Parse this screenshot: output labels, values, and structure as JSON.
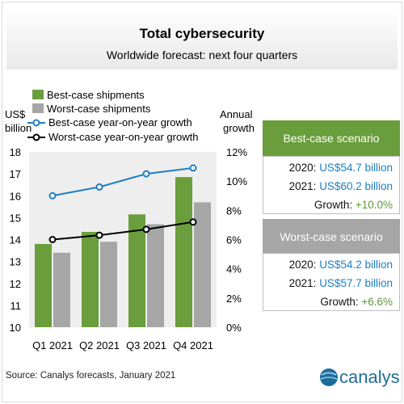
{
  "header": {
    "title": "Total cybersecurity",
    "subtitle": "Worldwide forecast: next four quarters"
  },
  "chart_data": {
    "type": "bar",
    "categories": [
      "Q1 2021",
      "Q2 2021",
      "Q3 2021",
      "Q4 2021"
    ],
    "ylim": [
      10,
      18
    ],
    "y2lim": [
      0,
      12
    ],
    "yticks": [
      "10",
      "11",
      "12",
      "13",
      "14",
      "15",
      "16",
      "17",
      "18"
    ],
    "y2ticks": [
      "0%",
      "2%",
      "4%",
      "6%",
      "8%",
      "10%",
      "12%"
    ],
    "ylabel": [
      "US$",
      "billion"
    ],
    "y2label": [
      "Annual",
      "growth"
    ],
    "grid": false,
    "legend_position": "top-left",
    "bar_series": [
      {
        "name": "Best-case shipments",
        "values": [
          13.8,
          14.35,
          15.15,
          16.85
        ]
      },
      {
        "name": "Worst-case shipments",
        "values": [
          13.4,
          13.9,
          14.7,
          15.7
        ]
      }
    ],
    "line_series": [
      {
        "name": "Best-case year-on-year growth",
        "axis": "right",
        "values": [
          9.0,
          9.6,
          10.5,
          10.9
        ]
      },
      {
        "name": "Worst-case year-on-year growth",
        "axis": "right",
        "values": [
          6.0,
          6.3,
          6.7,
          7.2
        ]
      }
    ],
    "colors": {
      "best_bar": "#6a9e3c",
      "worst_bar": "#a6a6a6",
      "best_line": "#1f7fbf",
      "worst_line": "#000000",
      "plot_bg": "#eeeeee"
    }
  },
  "panels": {
    "best": {
      "title": "Best-case scenario",
      "label_2020": "2020: ",
      "value_2020": "US$54.7 billion",
      "label_2021": "2021: ",
      "value_2021": "US$60.2 billion",
      "growth_label": "Growth: ",
      "growth_value": "+10.0%",
      "color": "#6a9e3c"
    },
    "worst": {
      "title": "Worst-case scenario",
      "label_2020": "2020: ",
      "value_2020": "US$54.2 billion",
      "label_2021": "2021: ",
      "value_2021": "US$57.7 billion",
      "growth_label": "Growth: ",
      "growth_value": "+6.6%",
      "color": "#a6a6a6"
    }
  },
  "footer": {
    "source": "Source: Canalys forecasts, January 2021",
    "logo_text": "canalys"
  }
}
